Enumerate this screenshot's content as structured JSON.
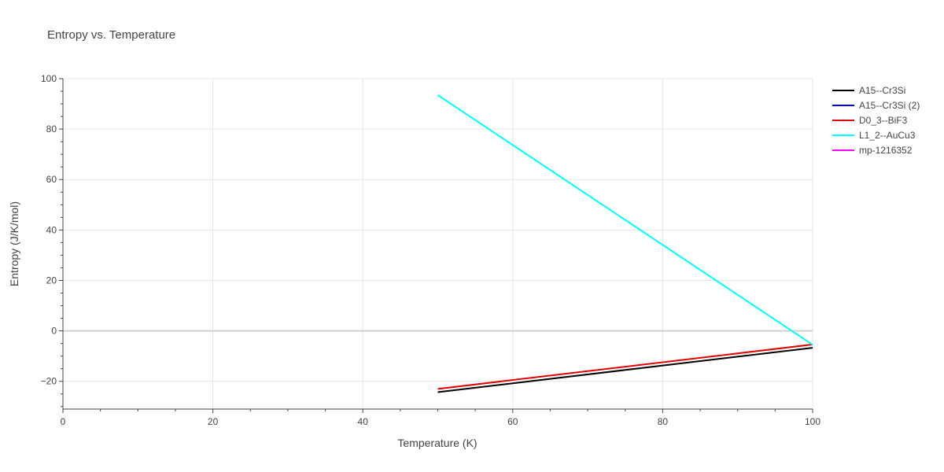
{
  "chart_data": {
    "type": "line",
    "title": "Entropy vs. Temperature",
    "xlabel": "Temperature (K)",
    "ylabel": "Entropy (J/K/mol)",
    "xlim": [
      0,
      100
    ],
    "ylim": [
      -31,
      100
    ],
    "x_ticks": [
      0,
      20,
      40,
      60,
      80,
      100
    ],
    "y_ticks": [
      -20,
      0,
      20,
      40,
      60,
      80,
      100
    ],
    "x_tick_labels": [
      "0",
      "20",
      "40",
      "60",
      "80",
      "100"
    ],
    "y_tick_labels": [
      "−20",
      "0",
      "20",
      "40",
      "60",
      "80",
      "100"
    ],
    "grid": true,
    "legend_position": "right",
    "series": [
      {
        "name": "A15--Cr3Si",
        "color": "#000000",
        "x": [
          50,
          100
        ],
        "y": [
          -24.3,
          -6.7
        ]
      },
      {
        "name": "A15--Cr3Si (2)",
        "color": "#0000ff",
        "x": [],
        "y": []
      },
      {
        "name": "D0_3--BiF3",
        "color": "#e50000",
        "x": [
          50,
          100
        ],
        "y": [
          -23.0,
          -5.4
        ]
      },
      {
        "name": "L1_2--AuCu3",
        "color": "#00ffff",
        "x": [
          50,
          100
        ],
        "y": [
          93.5,
          -5.5
        ]
      },
      {
        "name": "mp-1216352",
        "color": "#ff00ff",
        "x": [],
        "y": []
      }
    ]
  }
}
